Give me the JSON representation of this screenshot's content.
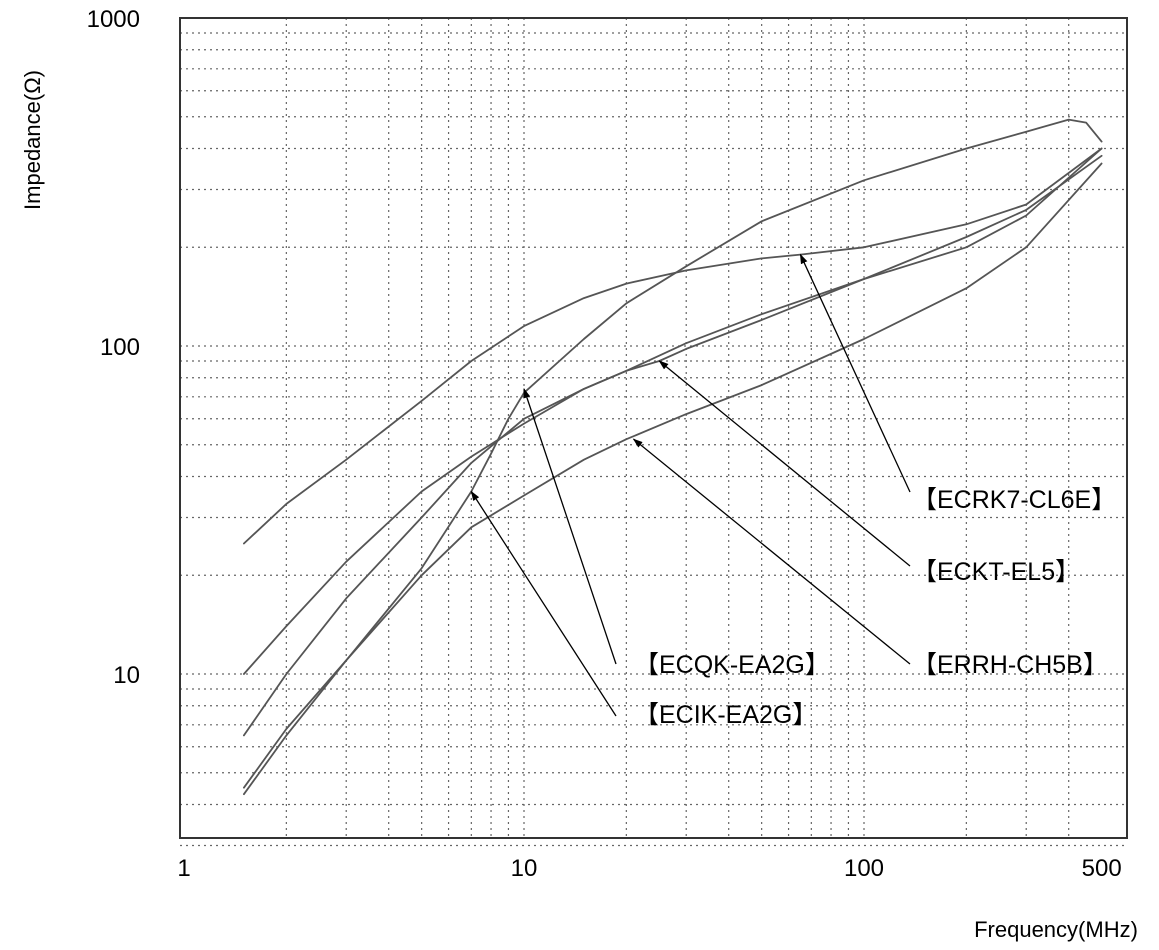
{
  "chart_data": {
    "type": "line",
    "title": "",
    "xlabel": "Frequency(MHz)",
    "ylabel": "Impedance(Ω)",
    "xscale": "log",
    "yscale": "log",
    "xlim": [
      1.5,
      500
    ],
    "ylim": [
      2,
      1000
    ],
    "xticks": [
      {
        "value": 1,
        "label": "1"
      },
      {
        "value": 10,
        "label": "10"
      },
      {
        "value": 100,
        "label": "100"
      },
      {
        "value": 500,
        "label": "500"
      }
    ],
    "yticks": [
      {
        "value": 1000,
        "label": "1000"
      },
      {
        "value": 100,
        "label": "100"
      },
      {
        "value": 10,
        "label": "10"
      }
    ],
    "grid": true,
    "legend": "none",
    "series": [
      {
        "name": "【ECRK7-CL6E】",
        "x": [
          1.5,
          2,
          3,
          5,
          7,
          10,
          15,
          20,
          30,
          50,
          65,
          100,
          200,
          300,
          500
        ],
        "y": [
          25,
          33,
          45,
          68,
          90,
          115,
          140,
          155,
          170,
          185,
          190,
          200,
          235,
          270,
          400
        ],
        "annotate_at": [
          65,
          190
        ]
      },
      {
        "name": "【ECKT-EL5】",
        "x": [
          1.5,
          2,
          3,
          5,
          7,
          10,
          15,
          20,
          25,
          30,
          50,
          100,
          200,
          300,
          500
        ],
        "y": [
          6.5,
          10,
          17,
          30,
          44,
          60,
          74,
          84,
          90,
          98,
          120,
          160,
          200,
          250,
          400
        ],
        "annotate_at": [
          25,
          90
        ]
      },
      {
        "name": "【ERRH-CH5B】",
        "x": [
          1.5,
          2,
          3,
          5,
          7,
          10,
          15,
          20,
          30,
          50,
          100,
          200,
          300,
          500
        ],
        "y": [
          4.3,
          6.5,
          11,
          20,
          28,
          35,
          45,
          52,
          62,
          76,
          105,
          150,
          200,
          360
        ],
        "annotate_at": [
          21,
          52
        ]
      },
      {
        "name": "【ECQK-EA2G】",
        "x": [
          1.5,
          2,
          3,
          5,
          7,
          8,
          9,
          10,
          15,
          20,
          30,
          50,
          100,
          200,
          300,
          400,
          450,
          500
        ],
        "y": [
          4.5,
          6.8,
          11,
          21,
          36,
          47,
          60,
          72,
          105,
          135,
          175,
          240,
          320,
          400,
          450,
          490,
          480,
          420
        ],
        "annotate_at": [
          10,
          74
        ]
      },
      {
        "name": "【ECIK-EA2G】",
        "x": [
          1.5,
          2,
          3,
          5,
          7,
          10,
          15,
          20,
          30,
          50,
          100,
          200,
          300,
          500
        ],
        "y": [
          10,
          14,
          22,
          36,
          46,
          58,
          74,
          84,
          102,
          125,
          160,
          215,
          260,
          380
        ],
        "annotate_at": [
          7,
          36
        ]
      }
    ],
    "annotations": [
      {
        "text": "【ECRK7-CL6E】",
        "series": "【ECRK7-CL6E】"
      },
      {
        "text": "【ECKT-EL5】",
        "series": "【ECKT-EL5】"
      },
      {
        "text": "【ERRH-CH5B】",
        "series": "【ERRH-CH5B】"
      },
      {
        "text": "【ECQK-EA2G】",
        "series": "【ECQK-EA2G】"
      },
      {
        "text": "【ECIK-EA2G】",
        "series": "【ECIK-EA2G】"
      }
    ]
  }
}
